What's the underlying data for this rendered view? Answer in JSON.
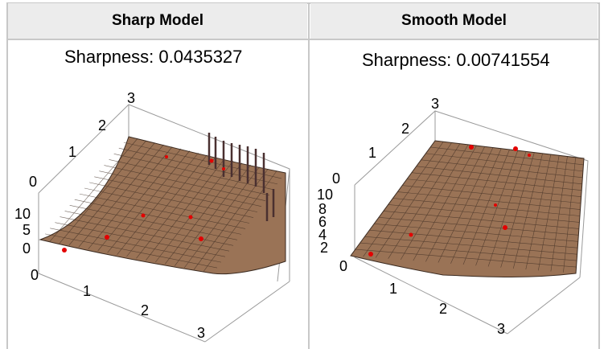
{
  "columns": [
    {
      "header": "Sharp Model",
      "sharpness_label": "Sharpness: 0.0435327",
      "axis_ticks": {
        "depth": [
          "0",
          "1",
          "2",
          "3"
        ],
        "z": [
          "0",
          "5",
          "10"
        ],
        "front": [
          "0",
          "1",
          "2",
          "3"
        ]
      }
    },
    {
      "header": "Smooth Model",
      "sharpness_label": "Sharpness: 0.00741554",
      "axis_ticks": {
        "depth": [
          "0",
          "1",
          "2",
          "3"
        ],
        "z": [
          "2",
          "4",
          "6",
          "8",
          "10"
        ],
        "front": [
          "0",
          "1",
          "2",
          "3"
        ]
      }
    }
  ],
  "colors": {
    "surface": "#9a7356",
    "surface_edge": "#3a2a20",
    "data_point": "#e30000",
    "box": "#9a9a9a",
    "header_bg": "#ececec",
    "grid_line": "#c8c8c8"
  }
}
